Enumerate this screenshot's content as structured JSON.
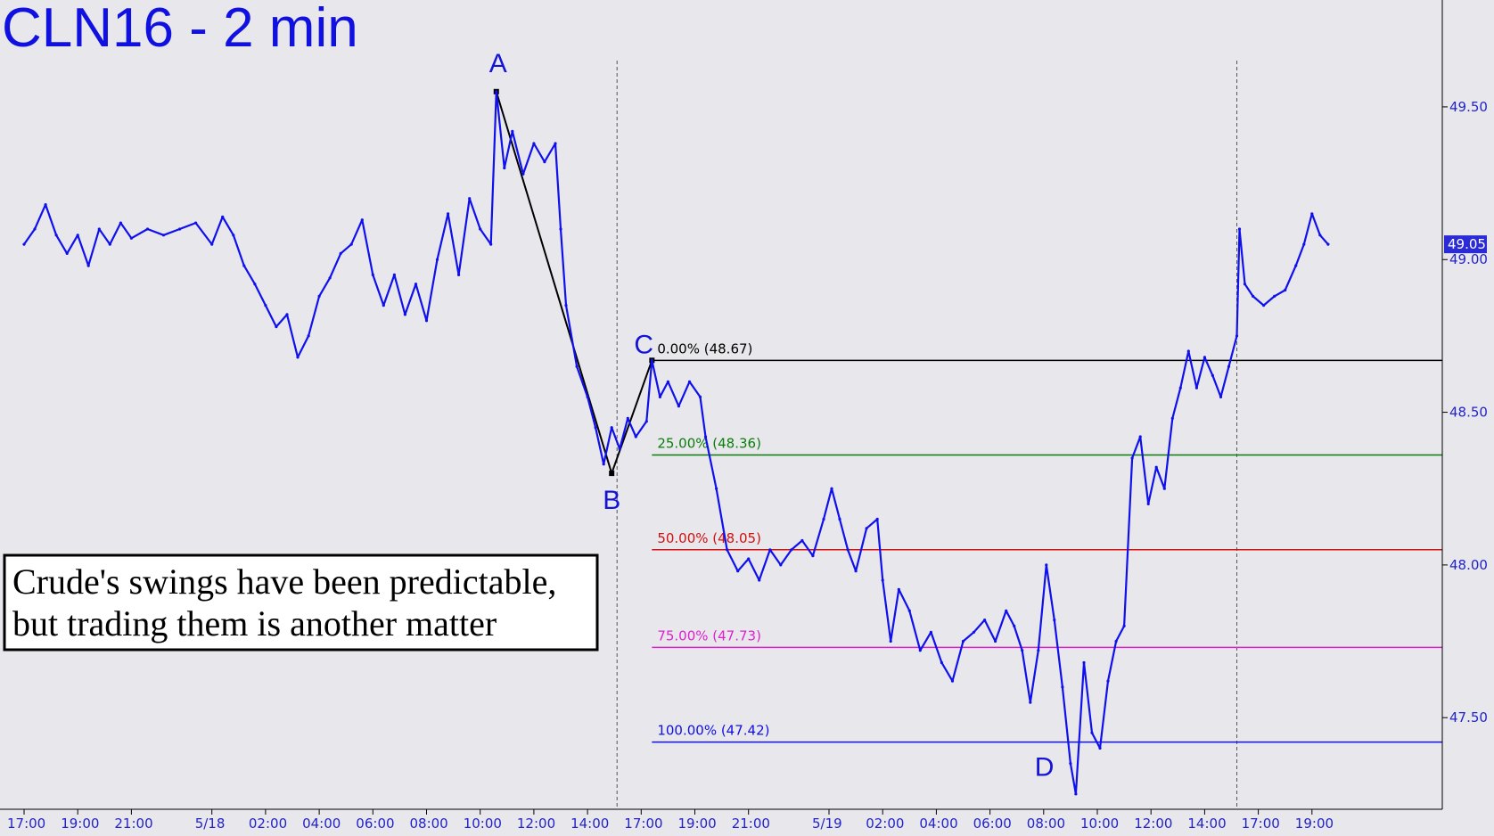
{
  "chart_data": {
    "type": "line",
    "title": "CLN16 - 2 min",
    "ylim": [
      47.2,
      49.85
    ],
    "yticks": [
      {
        "value": 49.5,
        "label": "49.50"
      },
      {
        "value": 49.0,
        "label": "49.00"
      },
      {
        "value": 48.5,
        "label": "48.50"
      },
      {
        "value": 48.0,
        "label": "48.00"
      },
      {
        "value": 47.5,
        "label": "47.50"
      }
    ],
    "xticks": [
      {
        "i": 0,
        "label": "17:00"
      },
      {
        "i": 1,
        "label": "19:00"
      },
      {
        "i": 2,
        "label": "21:00"
      },
      {
        "i": 3.5,
        "label": "5/18"
      },
      {
        "i": 4.5,
        "label": "02:00"
      },
      {
        "i": 5.5,
        "label": "04:00"
      },
      {
        "i": 6.5,
        "label": "06:00"
      },
      {
        "i": 7.5,
        "label": "08:00"
      },
      {
        "i": 8.5,
        "label": "10:00"
      },
      {
        "i": 9.5,
        "label": "12:00"
      },
      {
        "i": 10.5,
        "label": "14:00"
      },
      {
        "i": 11.5,
        "label": "17:00"
      },
      {
        "i": 12.5,
        "label": "19:00"
      },
      {
        "i": 13.5,
        "label": "21:00"
      },
      {
        "i": 15,
        "label": "5/19"
      },
      {
        "i": 16,
        "label": "02:00"
      },
      {
        "i": 17,
        "label": "04:00"
      },
      {
        "i": 18,
        "label": "06:00"
      },
      {
        "i": 19,
        "label": "08:00"
      },
      {
        "i": 20,
        "label": "10:00"
      },
      {
        "i": 21,
        "label": "12:00"
      },
      {
        "i": 22,
        "label": "14:00"
      },
      {
        "i": 23,
        "label": "17:00"
      },
      {
        "i": 24,
        "label": "19:00"
      }
    ],
    "session_breaks": [
      11.05,
      22.6
    ],
    "series": [
      {
        "color": "#1010ee",
        "points": [
          [
            0.0,
            49.05
          ],
          [
            0.2,
            49.1
          ],
          [
            0.4,
            49.18
          ],
          [
            0.6,
            49.08
          ],
          [
            0.8,
            49.02
          ],
          [
            1.0,
            49.08
          ],
          [
            1.2,
            48.98
          ],
          [
            1.4,
            49.1
          ],
          [
            1.6,
            49.05
          ],
          [
            1.8,
            49.12
          ],
          [
            2.0,
            49.07
          ],
          [
            2.3,
            49.1
          ],
          [
            2.6,
            49.08
          ],
          [
            2.9,
            49.1
          ],
          [
            3.2,
            49.12
          ],
          [
            3.5,
            49.05
          ],
          [
            3.7,
            49.14
          ],
          [
            3.9,
            49.08
          ],
          [
            4.1,
            48.98
          ],
          [
            4.3,
            48.92
          ],
          [
            4.5,
            48.85
          ],
          [
            4.7,
            48.78
          ],
          [
            4.9,
            48.82
          ],
          [
            5.1,
            48.68
          ],
          [
            5.3,
            48.75
          ],
          [
            5.5,
            48.88
          ],
          [
            5.7,
            48.94
          ],
          [
            5.9,
            49.02
          ],
          [
            6.1,
            49.05
          ],
          [
            6.3,
            49.13
          ],
          [
            6.5,
            48.95
          ],
          [
            6.7,
            48.85
          ],
          [
            6.9,
            48.95
          ],
          [
            7.1,
            48.82
          ],
          [
            7.3,
            48.92
          ],
          [
            7.5,
            48.8
          ],
          [
            7.7,
            49.0
          ],
          [
            7.9,
            49.15
          ],
          [
            8.1,
            48.95
          ],
          [
            8.3,
            49.2
          ],
          [
            8.5,
            49.1
          ],
          [
            8.7,
            49.05
          ],
          [
            8.8,
            49.55
          ],
          [
            8.95,
            49.3
          ],
          [
            9.1,
            49.42
          ],
          [
            9.3,
            49.28
          ],
          [
            9.5,
            49.38
          ],
          [
            9.7,
            49.32
          ],
          [
            9.9,
            49.38
          ],
          [
            10.0,
            49.1
          ],
          [
            10.1,
            48.85
          ],
          [
            10.3,
            48.65
          ],
          [
            10.5,
            48.55
          ],
          [
            10.65,
            48.45
          ],
          [
            10.8,
            48.33
          ],
          [
            10.95,
            48.45
          ],
          [
            11.1,
            48.38
          ],
          [
            11.25,
            48.48
          ],
          [
            11.4,
            48.42
          ],
          [
            11.6,
            48.47
          ],
          [
            11.7,
            48.67
          ],
          [
            11.85,
            48.55
          ],
          [
            12.0,
            48.6
          ],
          [
            12.2,
            48.52
          ],
          [
            12.4,
            48.6
          ],
          [
            12.6,
            48.55
          ],
          [
            12.7,
            48.42
          ],
          [
            12.9,
            48.25
          ],
          [
            13.1,
            48.05
          ],
          [
            13.3,
            47.98
          ],
          [
            13.5,
            48.02
          ],
          [
            13.7,
            47.95
          ],
          [
            13.9,
            48.05
          ],
          [
            14.1,
            48.0
          ],
          [
            14.3,
            48.05
          ],
          [
            14.5,
            48.08
          ],
          [
            14.7,
            48.03
          ],
          [
            14.9,
            48.15
          ],
          [
            15.05,
            48.25
          ],
          [
            15.2,
            48.15
          ],
          [
            15.35,
            48.05
          ],
          [
            15.5,
            47.98
          ],
          [
            15.7,
            48.12
          ],
          [
            15.9,
            48.15
          ],
          [
            16.0,
            47.95
          ],
          [
            16.15,
            47.75
          ],
          [
            16.3,
            47.92
          ],
          [
            16.5,
            47.85
          ],
          [
            16.7,
            47.72
          ],
          [
            16.9,
            47.78
          ],
          [
            17.1,
            47.68
          ],
          [
            17.3,
            47.62
          ],
          [
            17.5,
            47.75
          ],
          [
            17.7,
            47.78
          ],
          [
            17.9,
            47.82
          ],
          [
            18.1,
            47.75
          ],
          [
            18.3,
            47.85
          ],
          [
            18.45,
            47.8
          ],
          [
            18.6,
            47.72
          ],
          [
            18.75,
            47.55
          ],
          [
            18.9,
            47.72
          ],
          [
            19.05,
            48.0
          ],
          [
            19.2,
            47.82
          ],
          [
            19.35,
            47.6
          ],
          [
            19.5,
            47.35
          ],
          [
            19.6,
            47.25
          ],
          [
            19.75,
            47.68
          ],
          [
            19.9,
            47.45
          ],
          [
            20.05,
            47.4
          ],
          [
            20.2,
            47.62
          ],
          [
            20.35,
            47.75
          ],
          [
            20.5,
            47.8
          ],
          [
            20.65,
            48.35
          ],
          [
            20.8,
            48.42
          ],
          [
            20.95,
            48.2
          ],
          [
            21.1,
            48.32
          ],
          [
            21.25,
            48.25
          ],
          [
            21.4,
            48.48
          ],
          [
            21.55,
            48.58
          ],
          [
            21.7,
            48.7
          ],
          [
            21.85,
            48.58
          ],
          [
            22.0,
            48.68
          ],
          [
            22.15,
            48.62
          ],
          [
            22.3,
            48.55
          ],
          [
            22.45,
            48.65
          ],
          [
            22.6,
            48.75
          ],
          [
            22.65,
            49.1
          ],
          [
            22.75,
            48.92
          ],
          [
            22.9,
            48.88
          ],
          [
            23.1,
            48.85
          ],
          [
            23.3,
            48.88
          ],
          [
            23.5,
            48.9
          ],
          [
            23.7,
            48.98
          ],
          [
            23.85,
            49.05
          ],
          [
            24.0,
            49.15
          ],
          [
            24.15,
            49.08
          ],
          [
            24.3,
            49.05
          ]
        ]
      }
    ],
    "swing_labels": [
      {
        "label": "A",
        "i": 8.8,
        "value": 49.55
      },
      {
        "label": "B",
        "i": 10.95,
        "value": 48.3
      },
      {
        "label": "C",
        "i": 11.7,
        "value": 48.67
      },
      {
        "label": "D",
        "i": 19.0,
        "value": 47.42
      }
    ],
    "fib_levels": [
      {
        "label": "0.00% (48.67)",
        "value": 48.67,
        "color": "#000000"
      },
      {
        "label": "25.00% (48.36)",
        "value": 48.36,
        "color": "#0a7d0a"
      },
      {
        "label": "50.00% (48.05)",
        "value": 48.05,
        "color": "#d01010"
      },
      {
        "label": "75.00% (47.73)",
        "value": 47.73,
        "color": "#e020d0"
      },
      {
        "label": "100.00% (47.42)",
        "value": 47.42,
        "color": "#1010e0"
      }
    ],
    "last_price": {
      "label": "49.05",
      "value": 49.05
    }
  },
  "note": {
    "line1": "Crude's swings have been predictable,",
    "line2": "but trading them is another matter"
  }
}
